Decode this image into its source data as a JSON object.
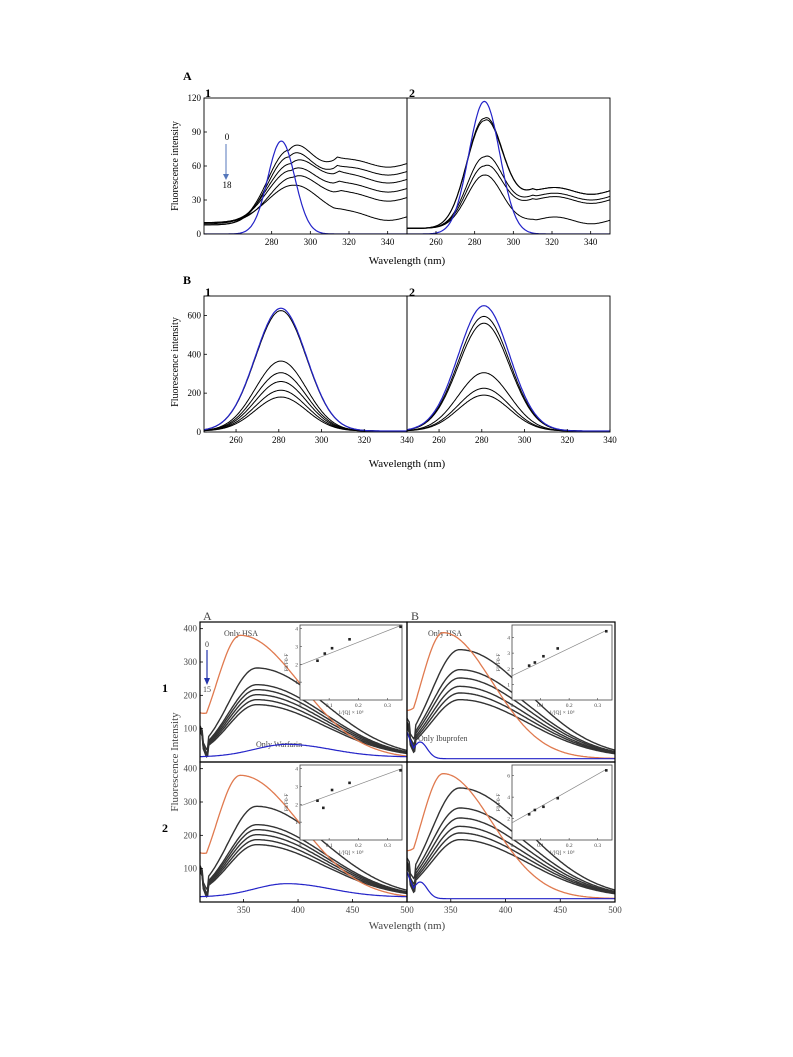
{
  "top_figure": {
    "panel_A_label": "A",
    "panel_B_label": "B",
    "sub1": "1",
    "sub2": "2",
    "ylabel": "Fluorescence intensity",
    "xlabel": "Wavelength (nm)",
    "arrow_start": "0",
    "arrow_end": "18"
  },
  "bottom_figure": {
    "panel_A_label": "A",
    "panel_B_label": "B",
    "row1": "1",
    "row2": "2",
    "ylabel": "Fluorescence Intensity",
    "xlabel": "Wavelength (nm)",
    "only_hsa": "Only HSA",
    "only_warfarin": "Only Warfarin",
    "only_ibuprofen": "Only Ibuprofen",
    "arrow_start": "0",
    "arrow_end": "15",
    "inset_ylabel": "F0/F0-F",
    "inset_xlabel": "1/[Q] × 10⁶"
  },
  "colors": {
    "probe": "#2323c8",
    "hsa": "#e07a4f",
    "quench": "#000000"
  },
  "chart_data": [
    {
      "type": "line",
      "panel": "A1",
      "xlim": [
        245,
        350
      ],
      "ylim": [
        0,
        120
      ],
      "xticks": [
        280,
        300,
        320,
        340
      ],
      "yticks": [
        0,
        30,
        60,
        90,
        120
      ],
      "blue": {
        "mu": 285,
        "sigma": 7,
        "amp": 82,
        "base": 0
      },
      "curves": [
        {
          "mu": 289,
          "sigma": 11,
          "amp": 66,
          "base_left": 8,
          "base_right": 62
        },
        {
          "mu": 289,
          "sigma": 11,
          "amp": 60,
          "base_left": 8,
          "base_right": 55
        },
        {
          "mu": 290,
          "sigma": 12,
          "amp": 53,
          "base_left": 9,
          "base_right": 48
        },
        {
          "mu": 290,
          "sigma": 12,
          "amp": 46,
          "base_left": 10,
          "base_right": 40
        },
        {
          "mu": 291,
          "sigma": 12,
          "amp": 40,
          "base_left": 10,
          "base_right": 32
        },
        {
          "mu": 291,
          "sigma": 13,
          "amp": 33,
          "base_left": 10,
          "base_right": 15
        }
      ]
    },
    {
      "type": "line",
      "panel": "A2",
      "xlim": [
        245,
        350
      ],
      "ylim": [
        0,
        120
      ],
      "xticks": [
        260,
        280,
        300,
        320,
        340
      ],
      "yticks": [],
      "blue": {
        "mu": 285,
        "sigma": 8,
        "amp": 117,
        "base": 0
      },
      "curves": [
        {
          "mu": 285,
          "sigma": 9,
          "amp": 97,
          "base_left": 5,
          "base_right": 38
        },
        {
          "mu": 285,
          "sigma": 9,
          "amp": 95,
          "base_left": 5,
          "base_right": 38
        },
        {
          "mu": 285,
          "sigma": 9,
          "amp": 63,
          "base_left": 5,
          "base_right": 33
        },
        {
          "mu": 285,
          "sigma": 9,
          "amp": 55,
          "base_left": 5,
          "base_right": 30
        },
        {
          "mu": 285,
          "sigma": 9,
          "amp": 47,
          "base_left": 5,
          "base_right": 12
        }
      ]
    },
    {
      "type": "line",
      "panel": "B1",
      "xlim": [
        245,
        340
      ],
      "ylim": [
        0,
        700
      ],
      "xticks": [
        260,
        280,
        300,
        320,
        340
      ],
      "yticks": [
        0,
        200,
        400,
        600
      ],
      "blue": {
        "mu": 281,
        "sigma": 12,
        "amp": 632,
        "base": 5
      },
      "curves": [
        {
          "mu": 281,
          "sigma": 12,
          "amp": 620,
          "base": 5
        },
        {
          "mu": 281,
          "sigma": 12,
          "amp": 360,
          "base": 5
        },
        {
          "mu": 281,
          "sigma": 12,
          "amp": 300,
          "base": 5
        },
        {
          "mu": 281,
          "sigma": 12,
          "amp": 255,
          "base": 5
        },
        {
          "mu": 281,
          "sigma": 12,
          "amp": 210,
          "base": 5
        },
        {
          "mu": 281,
          "sigma": 12,
          "amp": 175,
          "base": 5
        }
      ]
    },
    {
      "type": "line",
      "panel": "B2",
      "xlim": [
        245,
        340
      ],
      "ylim": [
        0,
        700
      ],
      "xticks": [
        260,
        280,
        300,
        320,
        340
      ],
      "yticks": [],
      "blue": {
        "mu": 281,
        "sigma": 12,
        "amp": 645,
        "base": 5
      },
      "curves": [
        {
          "mu": 281,
          "sigma": 12,
          "amp": 590,
          "base": 5
        },
        {
          "mu": 281,
          "sigma": 12,
          "amp": 555,
          "base": 5
        },
        {
          "mu": 281,
          "sigma": 12,
          "amp": 300,
          "base": 5
        },
        {
          "mu": 281,
          "sigma": 12,
          "amp": 220,
          "base": 5
        },
        {
          "mu": 281,
          "sigma": 12,
          "amp": 185,
          "base": 5
        }
      ]
    },
    {
      "type": "line",
      "panel": "bottom-A1",
      "xlim": [
        310,
        500
      ],
      "ylim": [
        0,
        420
      ],
      "xticks": [],
      "yticks": [
        100,
        200,
        300,
        400
      ],
      "hsa": {
        "mu": 347,
        "amp": 370,
        "wl": 22,
        "wr": 55
      },
      "probe": {
        "kind": "warfarin",
        "mu": 390,
        "amp": 38
      },
      "curves": [
        270,
        220,
        205,
        190,
        175,
        160
      ],
      "inset": {
        "xlim": [
          0,
          0.35
        ],
        "ylim": [
          0,
          4.2
        ],
        "xticks": [
          0,
          0.1,
          0.2,
          0.3
        ],
        "yticks": [
          1,
          2,
          3,
          4
        ],
        "points": [
          [
            0.06,
            2.2
          ],
          [
            0.085,
            2.6
          ],
          [
            0.11,
            2.9
          ],
          [
            0.17,
            3.4
          ],
          [
            0.345,
            4.1
          ]
        ],
        "fit": [
          [
            0,
            1.95
          ],
          [
            0.35,
            4.2
          ]
        ]
      }
    },
    {
      "type": "line",
      "panel": "bottom-B1",
      "xlim": [
        310,
        500
      ],
      "ylim": [
        0,
        420
      ],
      "xticks": [],
      "yticks": [],
      "hsa": {
        "mu": 343,
        "amp": 378,
        "wl": 20,
        "wr": 45
      },
      "probe": {
        "kind": "ibuprofen",
        "mu": 320,
        "amp": 50
      },
      "curves": [
        325,
        265,
        240,
        215,
        195,
        175
      ],
      "inset": {
        "xlim": [
          0,
          0.35
        ],
        "ylim": [
          0,
          4.8
        ],
        "xticks": [
          0,
          0.1,
          0.2,
          0.3
        ],
        "yticks": [
          1,
          2,
          3,
          4
        ],
        "points": [
          [
            0.06,
            2.2
          ],
          [
            0.08,
            2.4
          ],
          [
            0.11,
            2.8
          ],
          [
            0.16,
            3.3
          ],
          [
            0.33,
            4.4
          ]
        ],
        "fit": [
          [
            0,
            1.55
          ],
          [
            0.33,
            4.45
          ]
        ]
      }
    },
    {
      "type": "line",
      "panel": "bottom-A2",
      "xlim": [
        310,
        500
      ],
      "ylim": [
        0,
        420
      ],
      "xticks": [
        350,
        400,
        450,
        500
      ],
      "yticks": [
        100,
        200,
        300,
        400
      ],
      "hsa": {
        "mu": 347,
        "amp": 370,
        "wl": 22,
        "wr": 55
      },
      "probe": {
        "kind": "warfarin",
        "mu": 390,
        "amp": 40
      },
      "curves": [
        275,
        220,
        205,
        190,
        175,
        160
      ],
      "inset": {
        "xlim": [
          0,
          0.35
        ],
        "ylim": [
          0,
          4.2
        ],
        "xticks": [
          0,
          0.1,
          0.2,
          0.3
        ],
        "yticks": [
          1,
          2,
          3,
          4
        ],
        "points": [
          [
            0.06,
            2.2
          ],
          [
            0.08,
            1.8
          ],
          [
            0.11,
            2.8
          ],
          [
            0.17,
            3.2
          ],
          [
            0.345,
            3.9
          ]
        ],
        "fit": [
          [
            0,
            1.9
          ],
          [
            0.35,
            4.0
          ]
        ]
      }
    },
    {
      "type": "line",
      "panel": "bottom-B2",
      "xlim": [
        310,
        500
      ],
      "ylim": [
        0,
        420
      ],
      "xticks": [
        350,
        400,
        450,
        500
      ],
      "yticks": [],
      "hsa": {
        "mu": 343,
        "amp": 375,
        "wl": 20,
        "wr": 45
      },
      "probe": {
        "kind": "ibuprofen",
        "mu": 320,
        "amp": 50
      },
      "curves": [
        330,
        270,
        240,
        215,
        195,
        175
      ],
      "inset": {
        "xlim": [
          0,
          0.35
        ],
        "ylim": [
          0,
          7
        ],
        "xticks": [
          0,
          0.1,
          0.2,
          0.3
        ],
        "yticks": [
          2,
          4,
          6
        ],
        "points": [
          [
            0.06,
            2.4
          ],
          [
            0.08,
            2.8
          ],
          [
            0.11,
            3.1
          ],
          [
            0.16,
            3.9
          ],
          [
            0.33,
            6.5
          ]
        ],
        "fit": [
          [
            0,
            1.6
          ],
          [
            0.33,
            6.6
          ]
        ]
      }
    }
  ]
}
